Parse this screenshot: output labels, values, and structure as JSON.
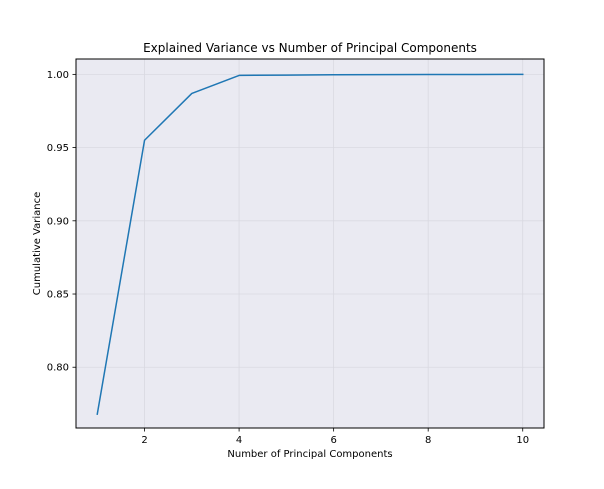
{
  "chart_data": {
    "type": "line",
    "title": "Explained Variance vs Number of Principal Components",
    "xlabel": "Number of Principal Components",
    "ylabel": "Cumulative Variance",
    "xlim": [
      0.55,
      10.45
    ],
    "ylim": [
      0.7585,
      1.0105
    ],
    "x_ticks": [
      2,
      4,
      6,
      8,
      10
    ],
    "x_tick_labels": [
      "2",
      "4",
      "6",
      "8",
      "10"
    ],
    "y_ticks": [
      0.8,
      0.85,
      0.9,
      0.95,
      1.0
    ],
    "y_tick_labels": [
      "0.80",
      "0.85",
      "0.90",
      "0.95",
      "1.00"
    ],
    "grid": true,
    "legend": "none",
    "series": [
      {
        "x": [
          1,
          2,
          3,
          4,
          5,
          6,
          7,
          8,
          9,
          10
        ],
        "values": [
          0.768,
          0.955,
          0.987,
          0.9993,
          0.9995,
          0.9997,
          0.9998,
          0.9999,
          0.99995,
          1.0
        ],
        "color": "#1f77b4"
      }
    ],
    "colors": {
      "plot_background": "#eaeaf2",
      "grid": "#d9d9e1",
      "axis": "#000000",
      "line": "#1f77b4"
    }
  }
}
